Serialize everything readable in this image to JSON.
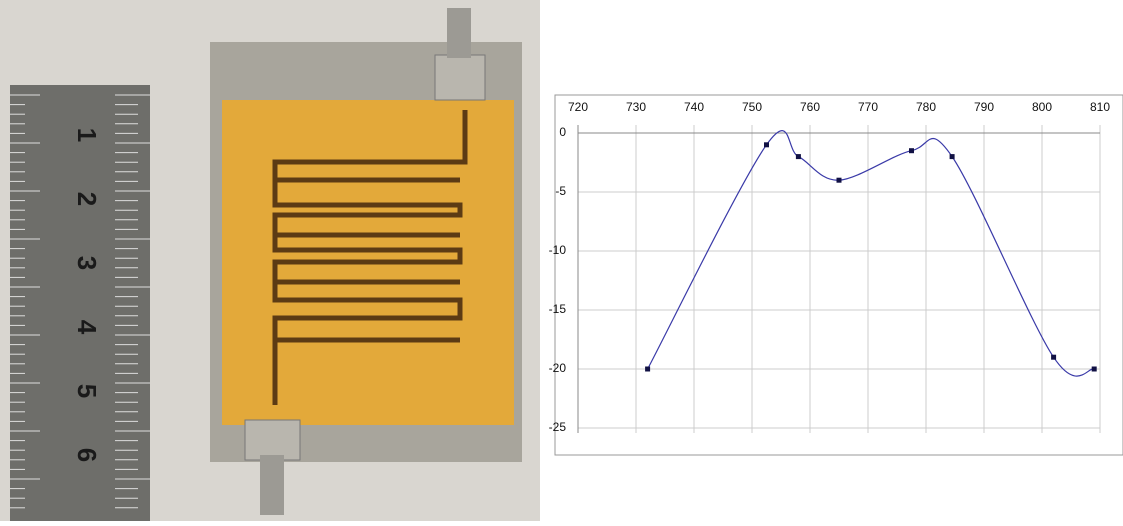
{
  "chart_data": {
    "type": "line",
    "x": [
      732,
      752.5,
      758,
      765,
      777.5,
      784.5,
      802,
      809
    ],
    "series": [
      {
        "color": "#3a3aa8",
        "values": [
          -20,
          -1,
          -2,
          -4,
          -1.5,
          -2,
          -19,
          -20
        ]
      }
    ],
    "xlim": [
      720,
      810
    ],
    "xticks": [
      720,
      730,
      740,
      750,
      760,
      770,
      780,
      790,
      800,
      810
    ],
    "ylim": [
      -25,
      0
    ],
    "yticks": [
      0,
      -5,
      -10,
      -15,
      -20,
      -25
    ],
    "grid": true,
    "smooth": true
  },
  "photo": {
    "ruler_labels": [
      "1",
      "2",
      "3",
      "4",
      "5",
      "6"
    ]
  }
}
